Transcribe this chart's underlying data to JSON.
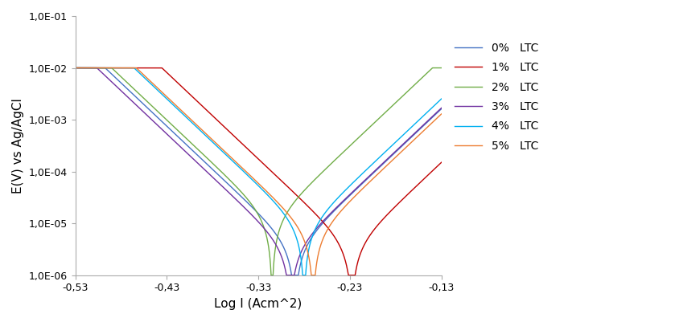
{
  "xlabel": "Log I (Acm^2)",
  "ylabel": "E(V) vs Ag/AgCl",
  "xlim": [
    -0.53,
    -0.13
  ],
  "ylim_log": [
    1e-06,
    0.1
  ],
  "xticks": [
    -0.53,
    -0.43,
    -0.33,
    -0.23,
    -0.13
  ],
  "ytick_vals": [
    1e-06,
    1e-05,
    0.0001,
    0.001,
    0.01,
    0.1
  ],
  "ytick_labels": [
    "1,0E-06",
    "1,0E-05",
    "1,0E-04",
    "1,0E-03",
    "1,0E-02",
    "1,0E-01"
  ],
  "series": [
    {
      "label": "0%   LTC",
      "color": "#4472C4",
      "E_corr": -0.29,
      "i_corr": 3.5e-06,
      "ba": 0.06,
      "bc": 0.06
    },
    {
      "label": "1%   LTC",
      "color": "#C00000",
      "E_corr": -0.228,
      "i_corr": 3.5e-06,
      "ba": 0.06,
      "bc": 0.06
    },
    {
      "label": "2%   LTC",
      "color": "#70AD47",
      "E_corr": -0.315,
      "i_corr": 1.2e-05,
      "ba": 0.06,
      "bc": 0.06
    },
    {
      "label": "3%   LTC",
      "color": "#7030A0",
      "E_corr": -0.295,
      "i_corr": 3e-06,
      "ba": 0.06,
      "bc": 0.06
    },
    {
      "label": "4%   LTC",
      "color": "#00B0F0",
      "E_corr": -0.28,
      "i_corr": 8e-06,
      "ba": 0.06,
      "bc": 0.06
    },
    {
      "label": "5%   LTC",
      "color": "#ED7D31",
      "E_corr": -0.27,
      "i_corr": 6e-06,
      "ba": 0.06,
      "bc": 0.06
    }
  ],
  "i_max": 0.01,
  "background_color": "#FFFFFF"
}
